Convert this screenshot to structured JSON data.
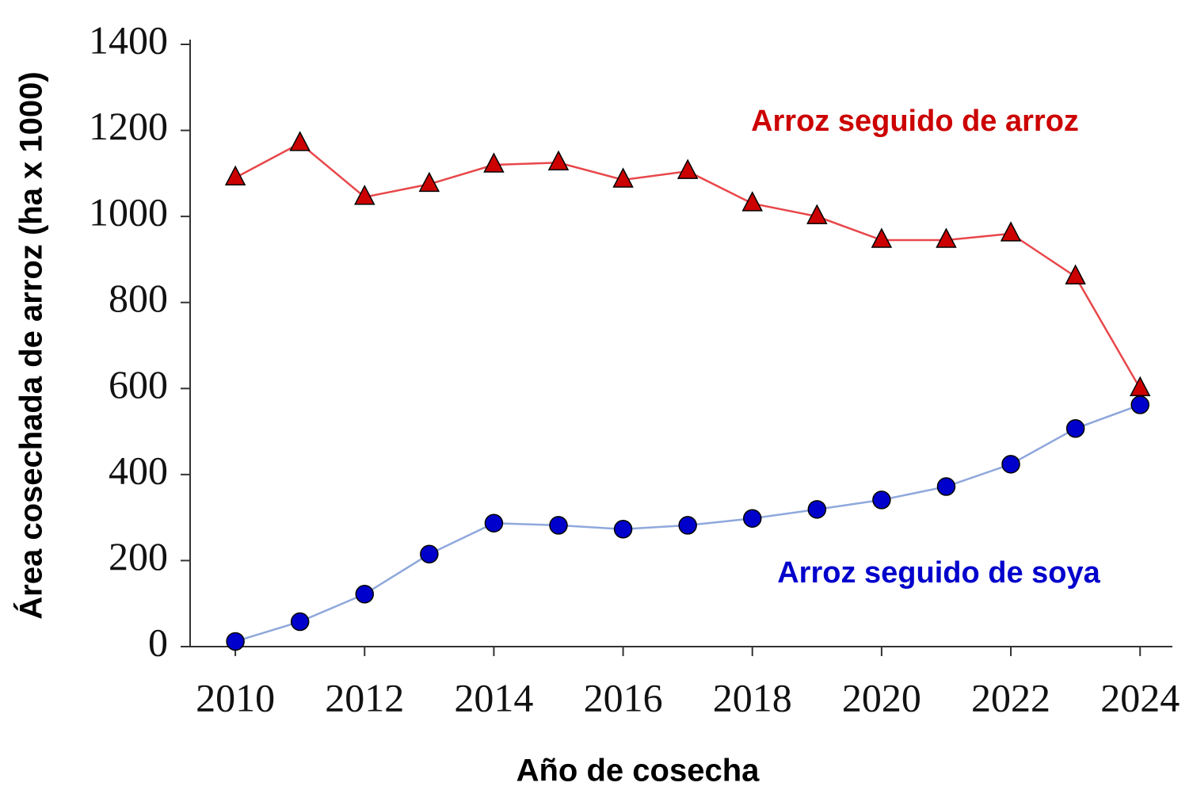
{
  "chart_data": {
    "type": "line",
    "x_label": "Año de cosecha",
    "y_label": "Área cosechada de arroz (ha x 1000)",
    "x": [
      2010,
      2011,
      2012,
      2013,
      2014,
      2015,
      2016,
      2017,
      2018,
      2019,
      2020,
      2021,
      2022,
      2023,
      2024
    ],
    "series": [
      {
        "name": "Arroz seguido de arroz",
        "color": "#cc0000",
        "line_color": "#e8474a",
        "marker": "triangle",
        "values": [
          1090,
          1170,
          1045,
          1075,
          1120,
          1125,
          1085,
          1105,
          1030,
          1000,
          945,
          945,
          960,
          860,
          600
        ]
      },
      {
        "name": "Arroz seguido de soya",
        "color": "#0000cc",
        "line_color": "#8fa8dc",
        "marker": "circle",
        "values": [
          12,
          58,
          122,
          215,
          287,
          282,
          273,
          282,
          298,
          319,
          341,
          372,
          424,
          507,
          562
        ]
      }
    ],
    "xlim": [
      2009.3,
      2024.5
    ],
    "xticks": [
      2010,
      2012,
      2014,
      2016,
      2018,
      2020,
      2022,
      2024
    ],
    "ylim": [
      0,
      1400
    ],
    "yticks": [
      0,
      200,
      400,
      600,
      800,
      1000,
      1200,
      1400
    ],
    "grid": false
  }
}
